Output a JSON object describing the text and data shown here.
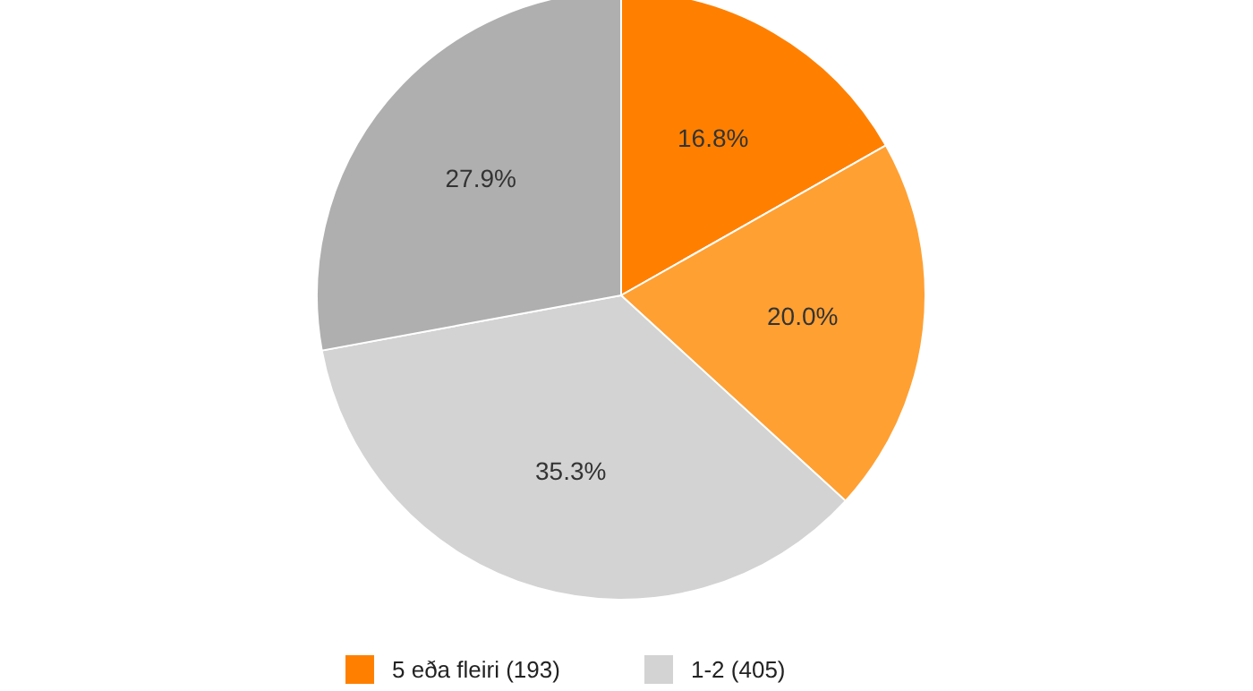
{
  "chart_data": {
    "type": "pie",
    "categories": [
      "5 eða fleiri (193)",
      null,
      "1-2 (405)",
      null
    ],
    "values": [
      16.8,
      20.0,
      35.3,
      27.9
    ],
    "colors": [
      "#ff8000",
      "#ffa033",
      "#d3d3d3",
      "#afafaf"
    ],
    "value_labels": [
      "16.8%",
      "20.0%",
      "35.3%",
      "27.9%"
    ],
    "legend": "bottom"
  }
}
